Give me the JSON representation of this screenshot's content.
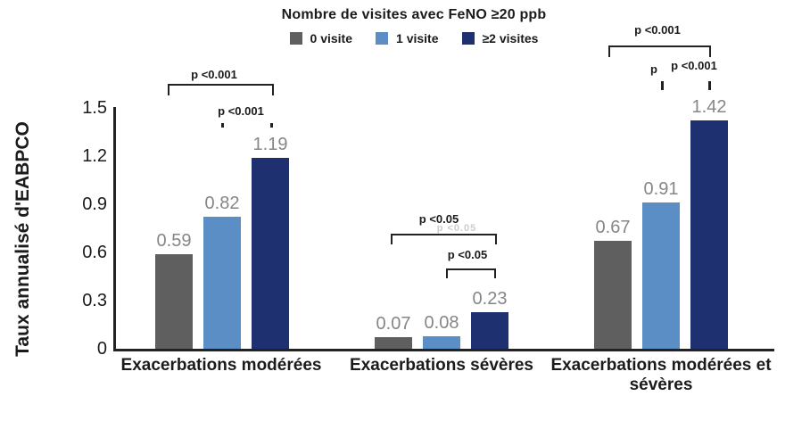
{
  "chart_data": {
    "type": "bar",
    "legend": {
      "title": "Nombre de visites avec FeNO ≥20 ppb",
      "position": "top"
    },
    "categories": [
      "Exacerbations modérées",
      "Exacerbations sévères",
      "Exacerbations modérées et sévères"
    ],
    "series": [
      {
        "name": "0 visite",
        "color": "#5F5F5F",
        "values": [
          0.59,
          0.07,
          0.67
        ]
      },
      {
        "name": "1 visite",
        "color": "#5B8EC4",
        "values": [
          0.82,
          0.08,
          0.91
        ]
      },
      {
        "name": "≥2 visites",
        "color": "#1F3070",
        "values": [
          1.19,
          0.23,
          1.42
        ]
      }
    ],
    "ylabel": "Taux annualisé d'EABPCO",
    "xlabel": "",
    "ylim": [
      0,
      1.5
    ],
    "yticks": [
      0,
      0.3,
      0.6,
      0.9,
      1.2,
      1.5
    ],
    "grid": false,
    "axis_color": "#222222",
    "value_label_color": "#868686",
    "annotations": {
      "moderees": {
        "outer": "p <0.001",
        "inner": "p <0.001"
      },
      "severes": {
        "outer": "p <0.05",
        "inner": "p <0.05",
        "ghost": "p <0.05"
      },
      "combined": {
        "outer": "p <0.001",
        "inner": "p <0.001",
        "stray": "p"
      }
    }
  }
}
